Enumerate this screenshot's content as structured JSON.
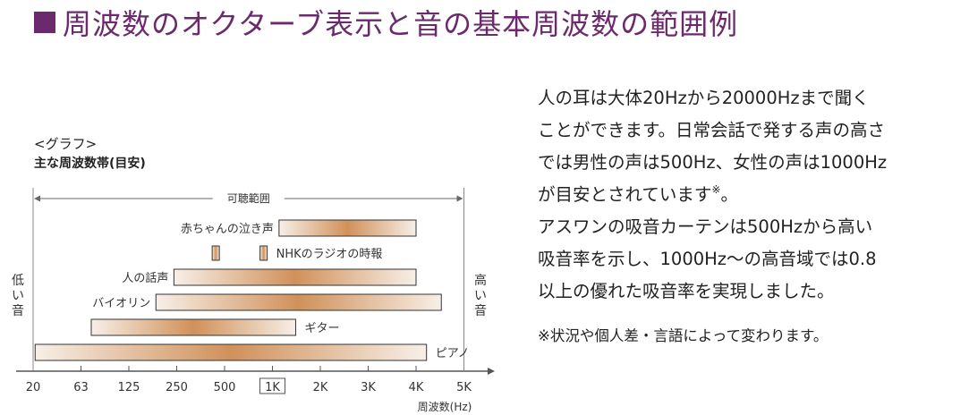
{
  "heading": "周波数のオクターブ表示と音の基本周波数の範囲例",
  "graph_label": "<グラフ>",
  "graph_subtitle": "主な周波数帯(目安)",
  "chart_data": {
    "type": "bar",
    "orientation": "horizontal",
    "xscale": "log",
    "xlabel": "周波数(Hz)",
    "x_ticks": [
      {
        "label": "20",
        "value": 20
      },
      {
        "label": "63",
        "value": 63
      },
      {
        "label": "125",
        "value": 125
      },
      {
        "label": "250",
        "value": 250
      },
      {
        "label": "500",
        "value": 500
      },
      {
        "label": "1K",
        "value": 1000,
        "boxed": true
      },
      {
        "label": "2K",
        "value": 2000
      },
      {
        "label": "3K",
        "value": 3000
      },
      {
        "label": "4K",
        "value": 4000
      },
      {
        "label": "5K",
        "value": 5000
      }
    ],
    "audible_range": {
      "label": "可聴範囲",
      "from": 20,
      "to": 5000
    },
    "left_label": "低い音",
    "right_label": "高い音",
    "colors": {
      "bar_edge": "#f7efe7",
      "bar_mid": "#d0915a",
      "border": "#333333",
      "axis": "#555555"
    },
    "bars": [
      {
        "name": "赤ちゃんの泣き声",
        "from": 1100,
        "to": 4000,
        "label_side": "left"
      },
      {
        "name": "NHKのラジオの時報",
        "from": 440,
        "to": 880,
        "point_markers": [
          440,
          880
        ],
        "label_side": "right"
      },
      {
        "name": "人の話声",
        "from": 240,
        "to": 4000,
        "label_side": "left"
      },
      {
        "name": "バイオリン",
        "from": 185,
        "to": 4500,
        "label_side": "left"
      },
      {
        "name": "ギター",
        "from": 73,
        "to": 1400,
        "label_side": "right"
      },
      {
        "name": "ピアノ",
        "from": 21,
        "to": 4200,
        "label_side": "right"
      }
    ]
  },
  "text": {
    "para1": [
      "人の耳は大体20Hzから20000Hzまで聞く",
      "ことができます。日常会話で発する声の高さ",
      "では男性の声は500Hz、女性の声は1000Hz",
      "が目安とされています"
    ],
    "footnote_mark": "※",
    "para1_end": "。",
    "para2": [
      "アスワンの吸音カーテンは500Hzから高い",
      "吸音率を示し、1000Hz〜の高音域では0.8",
      "以上の優れた吸音率を実現しました。"
    ],
    "note": "※状況や個人差・言語によって変わります。"
  }
}
